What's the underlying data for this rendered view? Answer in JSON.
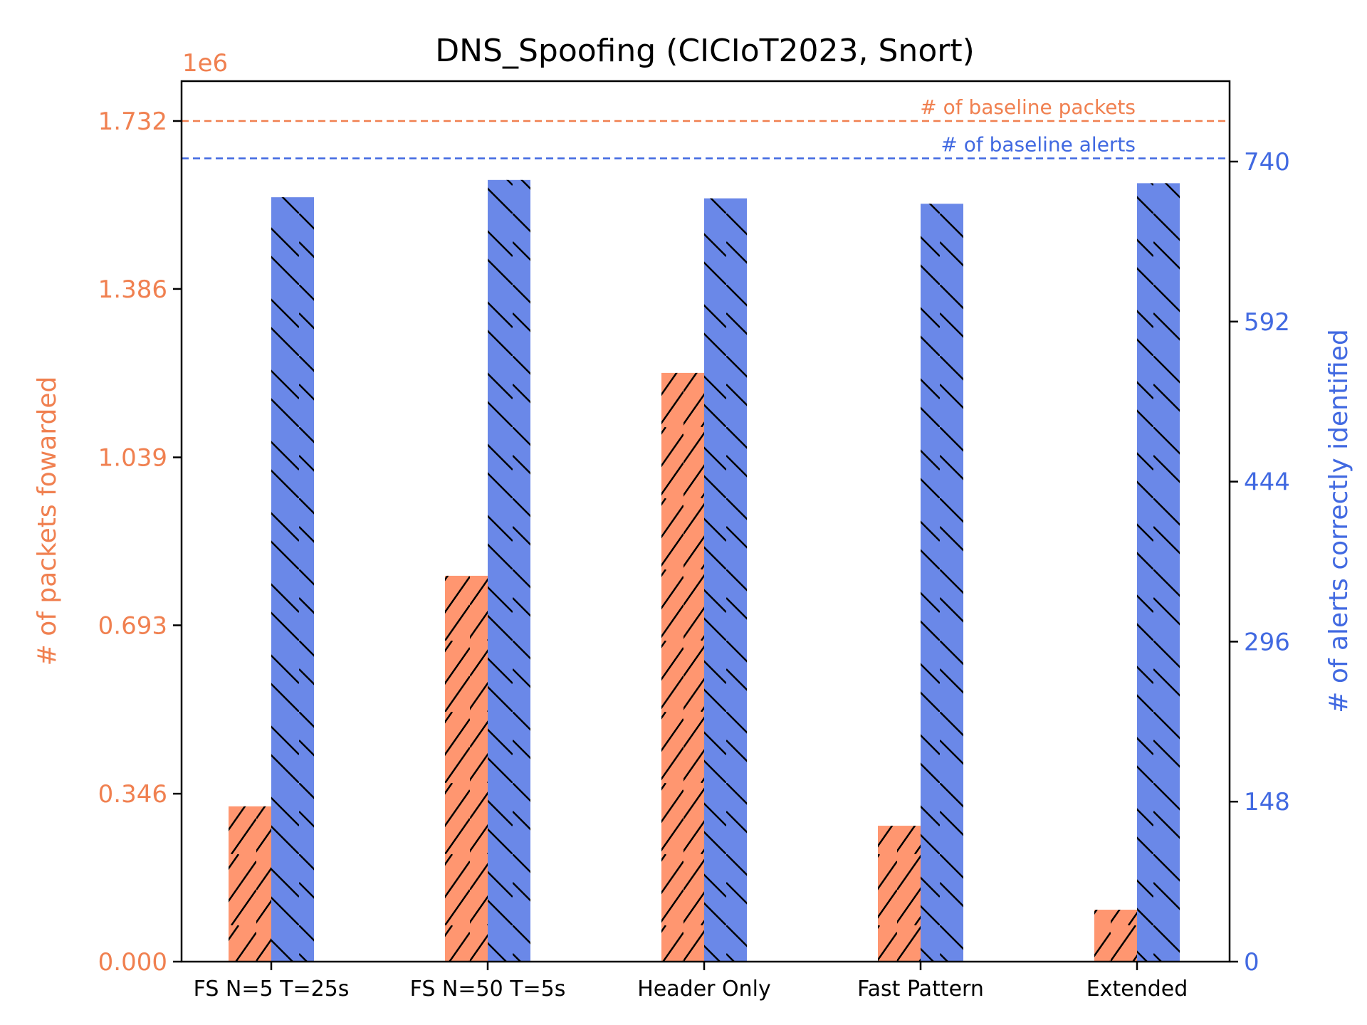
{
  "chart_data": {
    "type": "bar",
    "title": "DNS_Spoofing (CICIoT2023, Snort)",
    "categories": [
      "FS N=5 T=25s",
      "FS N=50 T=5s",
      "Header Only",
      "Fast Pattern",
      "Extended"
    ],
    "left_axis": {
      "label": "# of packets fowarded",
      "multiplier_label": "1e6",
      "ticks": [
        "0.000",
        "0.346",
        "0.693",
        "1.039",
        "1.386",
        "1.732"
      ],
      "range": [
        0,
        1.732
      ]
    },
    "right_axis": {
      "label": "# of alerts correctly identified",
      "ticks": [
        "0",
        "148",
        "296",
        "444",
        "592",
        "740"
      ],
      "range": [
        0,
        740
      ]
    },
    "series": [
      {
        "axis": "left",
        "color": "#FF9670",
        "values": [
          0.32,
          0.795,
          1.213,
          0.28,
          0.107
        ]
      },
      {
        "axis": "right",
        "color": "#6A88E8",
        "values": [
          707,
          723,
          706,
          701,
          720
        ]
      }
    ],
    "baselines": [
      {
        "label": "# of baseline packets",
        "axis": "left",
        "value": 1.732,
        "color": "#F08050"
      },
      {
        "label": "# of baseline alerts",
        "axis": "right",
        "value": 743,
        "color": "#4169E1"
      }
    ],
    "colors": {
      "left_axis": "#F08050",
      "right_axis": "#4169E1"
    }
  }
}
